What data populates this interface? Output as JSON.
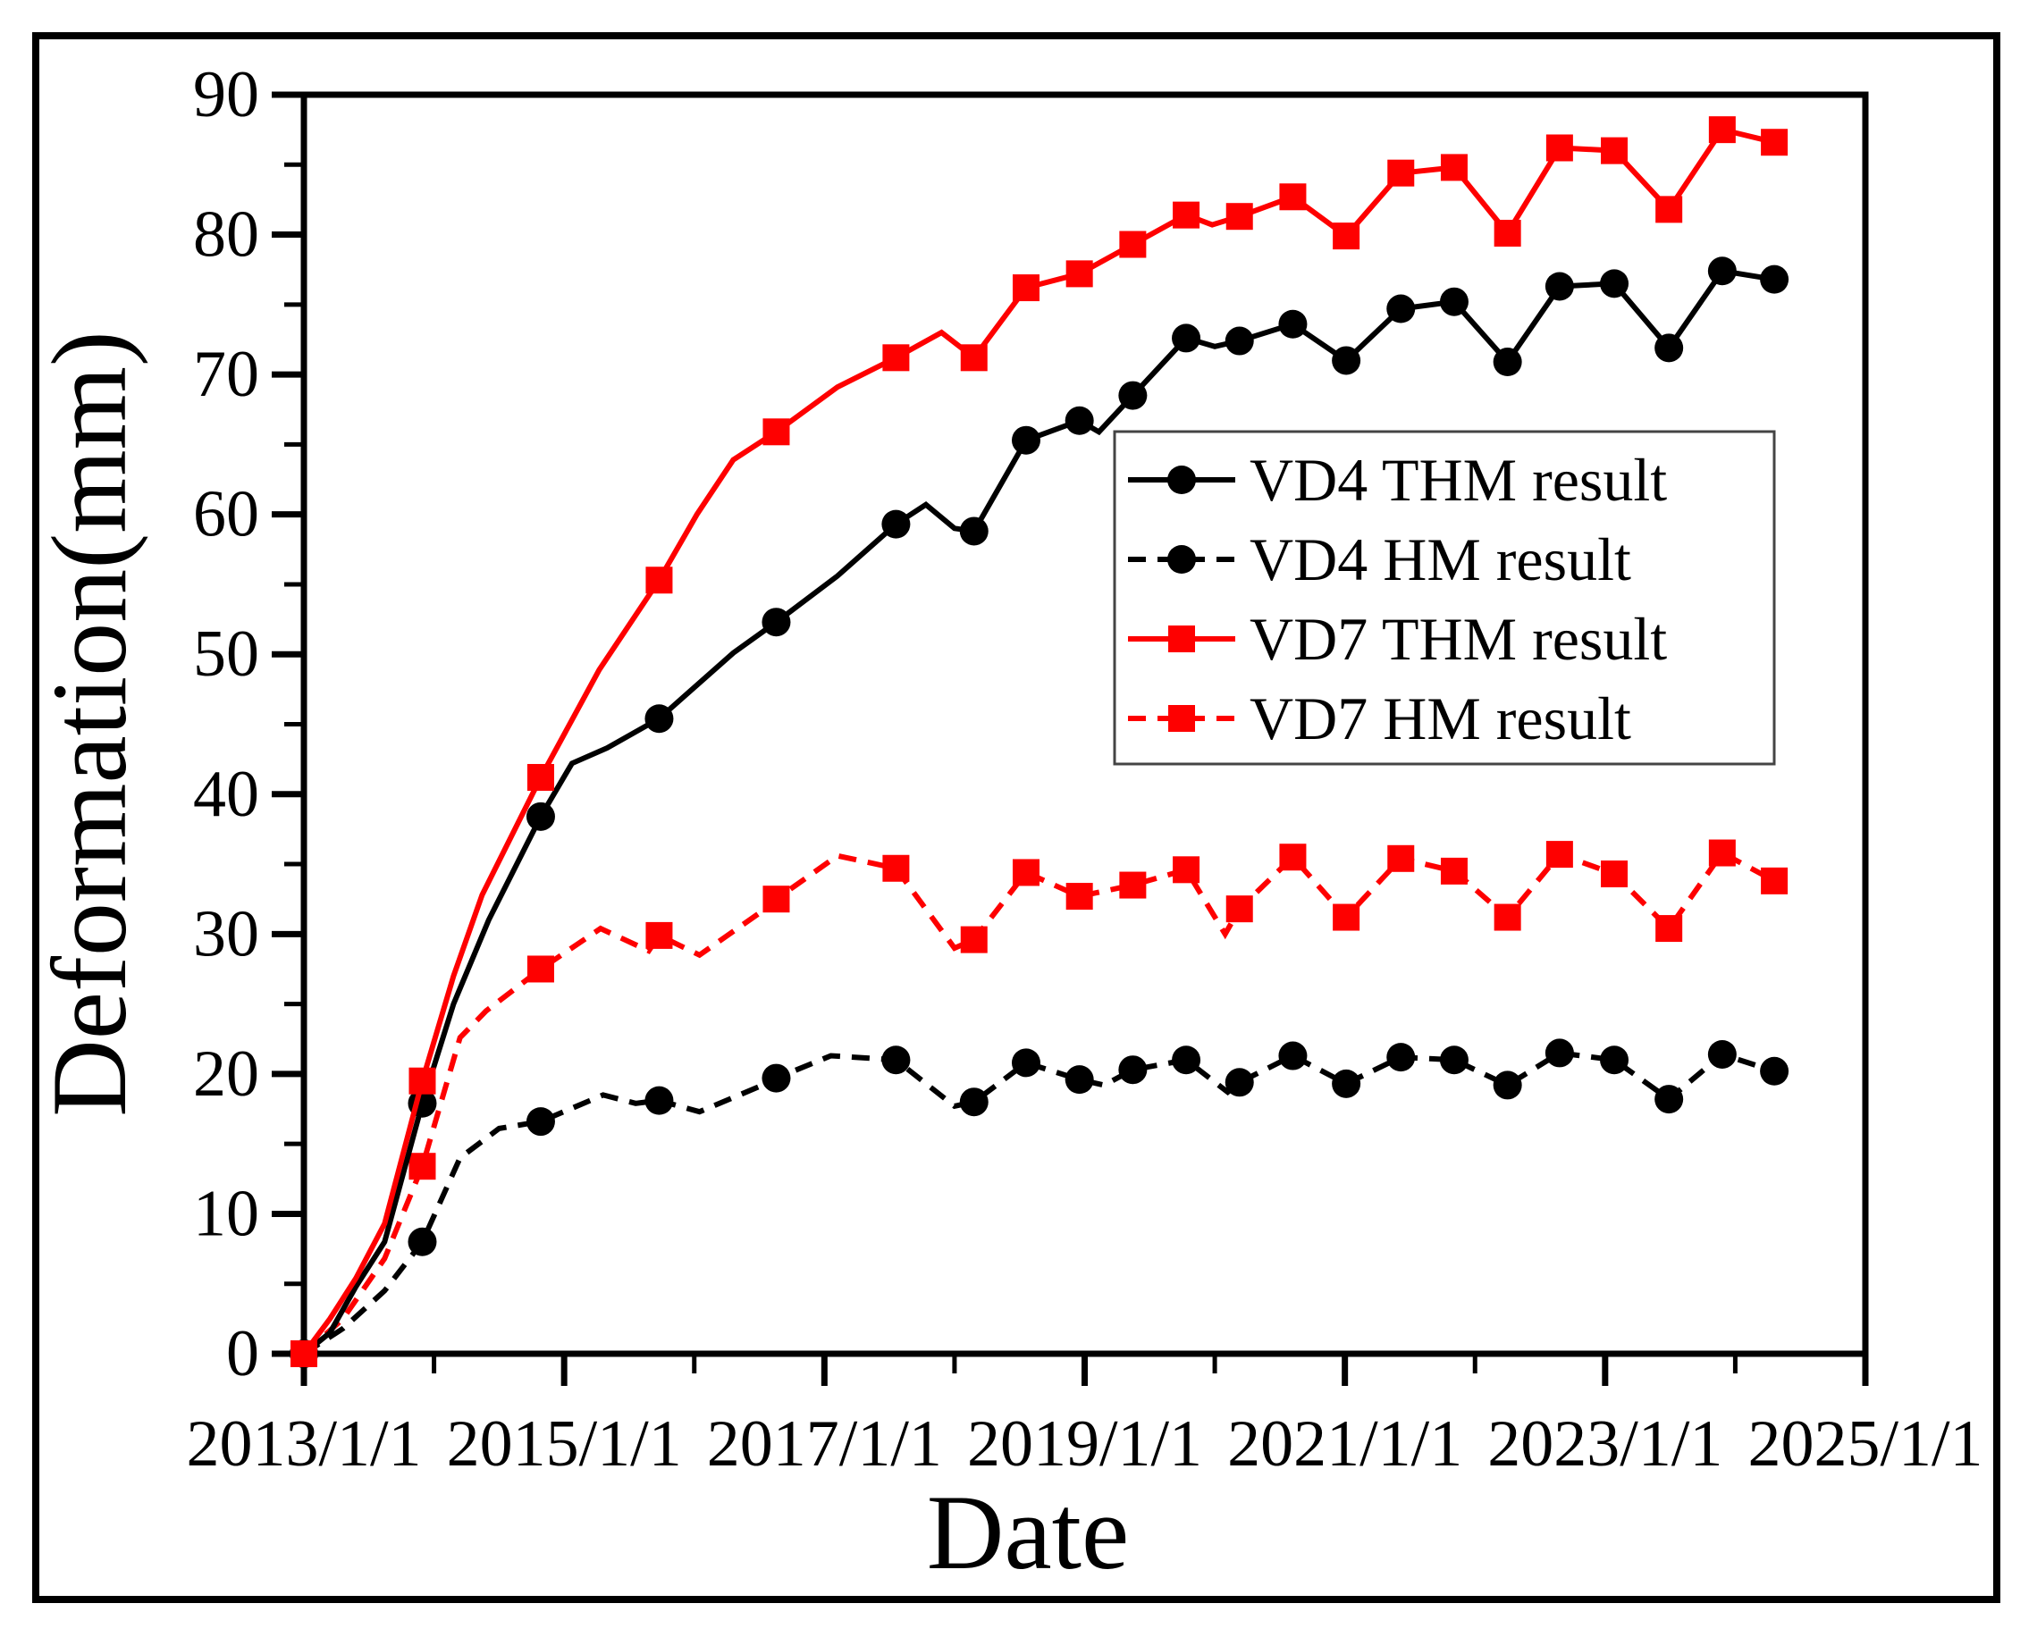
{
  "figure": {
    "background": "#ffffff",
    "border_color": "#000000",
    "accent_red": "#fe0000",
    "accent_black": "#000000"
  },
  "chart_data": {
    "type": "line",
    "title": "",
    "xlabel": "Date",
    "ylabel": "Deformation(mm)",
    "xlim": [
      2013,
      2025
    ],
    "ylim": [
      0,
      90
    ],
    "grid": false,
    "legend_position": "inside upper right",
    "x_major_ticks": [
      {
        "year": 2013,
        "label": "2013/1/1"
      },
      {
        "year": 2015,
        "label": "2015/1/1"
      },
      {
        "year": 2017,
        "label": "2017/1/1"
      },
      {
        "year": 2019,
        "label": "2019/1/1"
      },
      {
        "year": 2021,
        "label": "2021/1/1"
      },
      {
        "year": 2023,
        "label": "2023/1/1"
      },
      {
        "year": 2025,
        "label": "2025/1/1"
      }
    ],
    "x_minor_tick_years": [
      2014,
      2016,
      2018,
      2020,
      2022,
      2024
    ],
    "y_major_ticks": [
      0,
      10,
      20,
      30,
      40,
      50,
      60,
      70,
      80,
      90
    ],
    "y_minor_ticks": [
      5,
      15,
      25,
      35,
      45,
      55,
      65,
      75,
      85
    ],
    "marker_years": [
      2013.0,
      2013.91,
      2014.82,
      2015.73,
      2016.63,
      2017.55,
      2018.15,
      2018.55,
      2018.96,
      2019.37,
      2019.78,
      2020.19,
      2020.6,
      2021.01,
      2021.43,
      2021.84,
      2022.25,
      2022.65,
      2023.07,
      2023.49,
      2023.9,
      2024.3
    ],
    "draw_order": [
      1,
      3,
      0,
      2
    ],
    "series": [
      {
        "name": "VD4 THM result",
        "color": "#000000",
        "line_style": "solid",
        "marker_shape": "circle",
        "marker_values": [
          0,
          17.9,
          38.4,
          45.4,
          52.3,
          59.3,
          58.8,
          65.3,
          66.7,
          68.5,
          72.6,
          72.4,
          73.6,
          71.0,
          74.7,
          75.2,
          70.9,
          76.3,
          76.5,
          71.9,
          77.4,
          76.8
        ],
        "line_points": [
          [
            2013.0,
            0
          ],
          [
            2013.2,
            1.5
          ],
          [
            2013.4,
            4.8
          ],
          [
            2013.62,
            8.0
          ],
          [
            2013.91,
            17.9
          ],
          [
            2014.15,
            25.0
          ],
          [
            2014.42,
            31.0
          ],
          [
            2014.82,
            38.4
          ],
          [
            2015.06,
            42.2
          ],
          [
            2015.33,
            43.3
          ],
          [
            2015.73,
            45.4
          ],
          [
            2016.3,
            50.1
          ],
          [
            2016.63,
            52.3
          ],
          [
            2017.1,
            55.6
          ],
          [
            2017.55,
            59.3
          ],
          [
            2017.78,
            60.7
          ],
          [
            2018.0,
            59.0
          ],
          [
            2018.15,
            58.8
          ],
          [
            2018.55,
            65.3
          ],
          [
            2018.96,
            66.7
          ],
          [
            2019.11,
            65.9
          ],
          [
            2019.37,
            68.5
          ],
          [
            2019.78,
            72.6
          ],
          [
            2020.0,
            72.0
          ],
          [
            2020.19,
            72.4
          ],
          [
            2020.6,
            73.6
          ],
          [
            2021.01,
            71.0
          ],
          [
            2021.43,
            74.7
          ],
          [
            2021.84,
            75.2
          ],
          [
            2022.25,
            70.9
          ],
          [
            2022.65,
            76.3
          ],
          [
            2023.07,
            76.5
          ],
          [
            2023.49,
            71.9
          ],
          [
            2023.9,
            77.4
          ],
          [
            2024.3,
            76.8
          ]
        ]
      },
      {
        "name": "VD4 HM result",
        "color": "#000000",
        "line_style": "dashed",
        "marker_shape": "circle",
        "marker_values": [
          0,
          8.0,
          16.6,
          18.1,
          19.7,
          21.0,
          18.0,
          20.8,
          19.6,
          20.3,
          21.0,
          19.4,
          21.3,
          19.3,
          21.2,
          21.0,
          19.2,
          21.5,
          21.0,
          18.2,
          21.4,
          20.2
        ],
        "line_points": [
          [
            2013.0,
            0
          ],
          [
            2013.3,
            1.8
          ],
          [
            2013.62,
            4.5
          ],
          [
            2013.91,
            8.0
          ],
          [
            2014.2,
            14.0
          ],
          [
            2014.5,
            16.1
          ],
          [
            2014.82,
            16.6
          ],
          [
            2015.3,
            18.5
          ],
          [
            2015.55,
            17.9
          ],
          [
            2015.73,
            18.1
          ],
          [
            2016.04,
            17.3
          ],
          [
            2016.5,
            19.1
          ],
          [
            2016.63,
            19.7
          ],
          [
            2017.05,
            21.3
          ],
          [
            2017.55,
            21.0
          ],
          [
            2018.0,
            17.7
          ],
          [
            2018.15,
            18.0
          ],
          [
            2018.55,
            20.8
          ],
          [
            2018.96,
            19.6
          ],
          [
            2019.15,
            19.2
          ],
          [
            2019.37,
            20.3
          ],
          [
            2019.78,
            21.0
          ],
          [
            2020.1,
            18.7
          ],
          [
            2020.19,
            19.4
          ],
          [
            2020.6,
            21.3
          ],
          [
            2021.01,
            19.3
          ],
          [
            2021.43,
            21.2
          ],
          [
            2021.84,
            21.0
          ],
          [
            2022.25,
            19.2
          ],
          [
            2022.65,
            21.5
          ],
          [
            2023.07,
            21.0
          ],
          [
            2023.49,
            18.2
          ],
          [
            2023.9,
            21.4
          ],
          [
            2024.3,
            20.2
          ]
        ]
      },
      {
        "name": "VD7 THM result",
        "color": "#fe0000",
        "line_style": "solid",
        "marker_shape": "square",
        "marker_values": [
          0,
          19.5,
          41.2,
          55.3,
          65.9,
          71.2,
          71.2,
          76.2,
          77.2,
          79.3,
          81.4,
          81.3,
          82.7,
          79.9,
          84.4,
          84.8,
          80.1,
          86.2,
          86.0,
          81.8,
          87.5,
          86.6
        ],
        "line_points": [
          [
            2013.0,
            0
          ],
          [
            2013.2,
            2.5
          ],
          [
            2013.4,
            5.4
          ],
          [
            2013.62,
            9.3
          ],
          [
            2013.91,
            19.5
          ],
          [
            2014.15,
            27.0
          ],
          [
            2014.37,
            32.8
          ],
          [
            2014.82,
            41.2
          ],
          [
            2015.27,
            48.9
          ],
          [
            2015.73,
            55.3
          ],
          [
            2016.02,
            60.0
          ],
          [
            2016.3,
            63.9
          ],
          [
            2016.63,
            65.9
          ],
          [
            2017.1,
            69.1
          ],
          [
            2017.55,
            71.2
          ],
          [
            2017.9,
            73.0
          ],
          [
            2018.15,
            71.2
          ],
          [
            2018.55,
            76.2
          ],
          [
            2018.96,
            77.2
          ],
          [
            2019.37,
            79.3
          ],
          [
            2019.78,
            81.4
          ],
          [
            2019.98,
            80.7
          ],
          [
            2020.19,
            81.3
          ],
          [
            2020.6,
            82.7
          ],
          [
            2021.01,
            79.9
          ],
          [
            2021.43,
            84.4
          ],
          [
            2021.84,
            84.8
          ],
          [
            2022.25,
            80.1
          ],
          [
            2022.65,
            86.2
          ],
          [
            2023.07,
            86.0
          ],
          [
            2023.49,
            81.8
          ],
          [
            2023.9,
            87.5
          ],
          [
            2024.3,
            86.6
          ]
        ]
      },
      {
        "name": "VD7 HM result",
        "color": "#fe0000",
        "line_style": "dashed",
        "marker_shape": "square",
        "marker_values": [
          0,
          13.4,
          27.5,
          29.9,
          32.5,
          34.7,
          29.6,
          34.4,
          32.7,
          33.5,
          34.6,
          31.8,
          35.5,
          31.2,
          35.4,
          34.5,
          31.2,
          35.7,
          34.3,
          30.4,
          35.8,
          33.8
        ],
        "line_points": [
          [
            2013.0,
            0
          ],
          [
            2013.3,
            2.5
          ],
          [
            2013.62,
            6.8
          ],
          [
            2013.91,
            13.4
          ],
          [
            2014.2,
            22.6
          ],
          [
            2014.4,
            24.5
          ],
          [
            2014.82,
            27.5
          ],
          [
            2015.28,
            30.4
          ],
          [
            2015.65,
            28.8
          ],
          [
            2015.73,
            29.9
          ],
          [
            2016.04,
            28.5
          ],
          [
            2016.5,
            31.5
          ],
          [
            2016.63,
            32.5
          ],
          [
            2017.1,
            35.6
          ],
          [
            2017.55,
            34.7
          ],
          [
            2018.0,
            29.0
          ],
          [
            2018.15,
            29.6
          ],
          [
            2018.55,
            34.4
          ],
          [
            2018.96,
            32.7
          ],
          [
            2019.37,
            33.5
          ],
          [
            2019.78,
            34.6
          ],
          [
            2020.08,
            30.0
          ],
          [
            2020.19,
            31.8
          ],
          [
            2020.6,
            35.5
          ],
          [
            2021.01,
            31.2
          ],
          [
            2021.43,
            35.4
          ],
          [
            2021.84,
            34.5
          ],
          [
            2022.25,
            31.2
          ],
          [
            2022.65,
            35.7
          ],
          [
            2023.07,
            34.3
          ],
          [
            2023.49,
            30.4
          ],
          [
            2023.9,
            35.8
          ],
          [
            2024.3,
            33.8
          ]
        ]
      }
    ]
  }
}
